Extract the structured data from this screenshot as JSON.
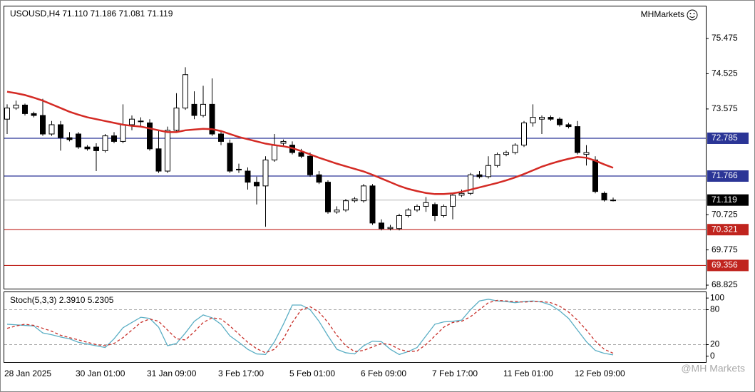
{
  "brand": "MHMarkets",
  "watermark": "@MH Markets",
  "chart_data": [
    {
      "type": "candlestick",
      "title": "USOUSD,H4  71.110 71.186 71.081 71.119",
      "categories": [
        "28 Jan 2025",
        null,
        null,
        null,
        null,
        null,
        null,
        null,
        "30 Jan 01:00",
        null,
        null,
        null,
        null,
        null,
        null,
        null,
        "31 Jan 09:00",
        null,
        null,
        null,
        null,
        null,
        null,
        null,
        "3 Feb 17:00",
        null,
        null,
        null,
        null,
        null,
        null,
        null,
        "5 Feb 01:00",
        null,
        null,
        null,
        null,
        null,
        null,
        null,
        "6 Feb 09:00",
        null,
        null,
        null,
        null,
        null,
        null,
        null,
        "7 Feb 17:00",
        null,
        null,
        null,
        null,
        null,
        null,
        null,
        "11 Feb 01:00",
        null,
        null,
        null,
        null,
        null,
        null,
        null,
        "12 Feb 09:00",
        null,
        null,
        null,
        null
      ],
      "open": [
        73.3,
        73.6,
        73.68,
        73.45,
        73.4,
        72.9,
        73.15,
        72.8,
        72.9,
        72.55,
        72.55,
        72.45,
        72.85,
        72.7,
        73.15,
        73.25,
        73.2,
        72.5,
        71.9,
        73.0,
        73.6,
        73.7,
        73.4,
        73.7,
        72.9,
        72.65,
        71.95,
        71.9,
        71.6,
        71.5,
        72.2,
        72.65,
        72.6,
        72.4,
        72.3,
        71.8,
        71.6,
        70.8,
        70.85,
        71.1,
        71.1,
        71.5,
        70.5,
        70.35,
        70.35,
        70.7,
        70.85,
        70.95,
        71.0,
        70.7,
        70.95,
        71.25,
        71.3,
        71.8,
        71.75,
        72.05,
        72.35,
        72.4,
        72.6,
        73.2,
        73.3,
        73.35,
        73.3,
        73.15,
        73.1,
        72.35,
        72.2,
        71.3,
        71.11
      ],
      "high": [
        73.7,
        73.8,
        73.72,
        73.5,
        73.85,
        73.25,
        73.25,
        72.95,
        72.95,
        72.6,
        72.65,
        72.9,
        72.95,
        73.7,
        73.4,
        73.35,
        73.3,
        73.0,
        73.1,
        74.0,
        74.7,
        74.05,
        74.2,
        74.4,
        73.0,
        72.75,
        72.1,
        72.0,
        71.75,
        72.3,
        72.9,
        72.75,
        72.7,
        72.5,
        72.4,
        71.9,
        71.65,
        70.95,
        71.15,
        71.2,
        71.55,
        71.55,
        70.6,
        70.45,
        70.75,
        70.9,
        71.0,
        71.2,
        71.05,
        71.0,
        71.3,
        71.4,
        71.85,
        71.9,
        72.3,
        72.4,
        72.45,
        72.65,
        73.25,
        73.7,
        73.4,
        73.4,
        73.35,
        73.2,
        73.25,
        72.6,
        72.3,
        71.35,
        71.186
      ],
      "low": [
        72.9,
        73.55,
        73.4,
        73.35,
        72.85,
        72.85,
        72.45,
        72.7,
        72.5,
        72.45,
        71.9,
        72.4,
        72.65,
        72.65,
        73.0,
        73.1,
        72.45,
        71.85,
        71.85,
        72.95,
        73.55,
        73.3,
        73.35,
        72.85,
        72.6,
        71.85,
        71.85,
        71.4,
        71.0,
        70.4,
        72.15,
        72.55,
        72.35,
        72.25,
        71.75,
        71.55,
        70.75,
        70.75,
        70.8,
        71.05,
        71.05,
        70.45,
        70.3,
        70.3,
        70.3,
        70.65,
        70.8,
        70.8,
        70.55,
        70.65,
        70.6,
        71.2,
        71.25,
        71.7,
        71.7,
        72.0,
        72.3,
        72.35,
        72.55,
        73.1,
        72.9,
        73.25,
        73.1,
        73.05,
        72.35,
        72.05,
        71.3,
        71.08,
        71.081
      ],
      "close": [
        73.6,
        73.68,
        73.45,
        73.4,
        72.9,
        73.15,
        72.8,
        72.75,
        72.55,
        72.5,
        72.45,
        72.85,
        72.7,
        73.15,
        73.3,
        73.25,
        72.5,
        71.9,
        73.0,
        73.6,
        74.5,
        73.4,
        73.7,
        72.9,
        72.7,
        71.9,
        71.95,
        71.6,
        71.5,
        72.2,
        72.6,
        72.7,
        72.4,
        72.3,
        71.8,
        71.6,
        70.8,
        70.85,
        71.1,
        71.15,
        71.5,
        70.5,
        70.35,
        70.38,
        70.7,
        70.85,
        70.95,
        71.05,
        70.7,
        70.95,
        71.25,
        71.3,
        71.8,
        71.75,
        72.05,
        72.35,
        72.4,
        72.6,
        73.2,
        73.35,
        73.35,
        73.3,
        73.15,
        73.1,
        72.4,
        72.4,
        71.35,
        71.12,
        71.119
      ],
      "bull_color": "#ffffff",
      "bear_color": "#000000",
      "ma": {
        "color": "#d42a24",
        "values": [
          74.04,
          74.0,
          73.95,
          73.88,
          73.8,
          73.7,
          73.6,
          73.5,
          73.42,
          73.35,
          73.3,
          73.25,
          73.2,
          73.15,
          73.12,
          73.1,
          73.05,
          73.0,
          72.95,
          72.95,
          73.0,
          73.02,
          73.04,
          73.03,
          72.98,
          72.9,
          72.82,
          72.76,
          72.7,
          72.64,
          72.6,
          72.57,
          72.52,
          72.44,
          72.35,
          72.26,
          72.18,
          72.1,
          72.03,
          71.96,
          71.89,
          71.8,
          71.7,
          71.6,
          71.5,
          71.42,
          71.36,
          71.31,
          71.28,
          71.28,
          71.3,
          71.34,
          71.4,
          71.46,
          71.52,
          71.58,
          71.65,
          71.73,
          71.82,
          71.92,
          72.02,
          72.1,
          72.17,
          72.23,
          72.28,
          72.26,
          72.18,
          72.08,
          71.99
        ]
      },
      "levels": [
        {
          "value": 72.785,
          "color": "#2b3596"
        },
        {
          "value": 71.766,
          "color": "#2b3596"
        },
        {
          "value": 70.321,
          "color": "#c0241e"
        },
        {
          "value": 69.356,
          "color": "#c0241e"
        },
        {
          "value": 71.119,
          "color": "#000000"
        }
      ],
      "ylim": [
        68.73,
        76.34
      ],
      "yticks": [
        75.475,
        74.525,
        73.575,
        70.725,
        69.775,
        68.825
      ]
    },
    {
      "type": "line",
      "title": "Stoch(5,3,3) 2.3910 5.2305",
      "series": [
        {
          "color": "#5aaec4",
          "dashed": false,
          "values": [
            55,
            54,
            53,
            52,
            40,
            37,
            33,
            30,
            24,
            21,
            18,
            15,
            30,
            49,
            58,
            67,
            65,
            50,
            18,
            22,
            40,
            60,
            71,
            66,
            55,
            35,
            24,
            12,
            4,
            3,
            25,
            55,
            88,
            88,
            80,
            60,
            35,
            12,
            6,
            4,
            18,
            26,
            25,
            12,
            3,
            8,
            15,
            35,
            55,
            59,
            60,
            62,
            80,
            95,
            98,
            95,
            94,
            92,
            94,
            95,
            93,
            88,
            78,
            65,
            45,
            25,
            10,
            5,
            2.391
          ]
        },
        {
          "color": "#c8302a",
          "dashed": true,
          "values": [
            48,
            52,
            55,
            53,
            48,
            43,
            36,
            32,
            28,
            24,
            20,
            18,
            22,
            32,
            45,
            58,
            64,
            60,
            45,
            30,
            28,
            42,
            58,
            66,
            64,
            52,
            38,
            24,
            13,
            6,
            12,
            30,
            58,
            80,
            85,
            76,
            58,
            36,
            18,
            8,
            10,
            16,
            22,
            20,
            12,
            8,
            9,
            20,
            35,
            50,
            58,
            60,
            68,
            80,
            92,
            96,
            95,
            94,
            93,
            94,
            94,
            92,
            86,
            76,
            62,
            45,
            26,
            12,
            5.2305
          ]
        }
      ],
      "levels": [
        20,
        80
      ],
      "ylim": [
        -10,
        110
      ],
      "yticks": [
        0,
        20,
        80,
        100
      ]
    }
  ]
}
